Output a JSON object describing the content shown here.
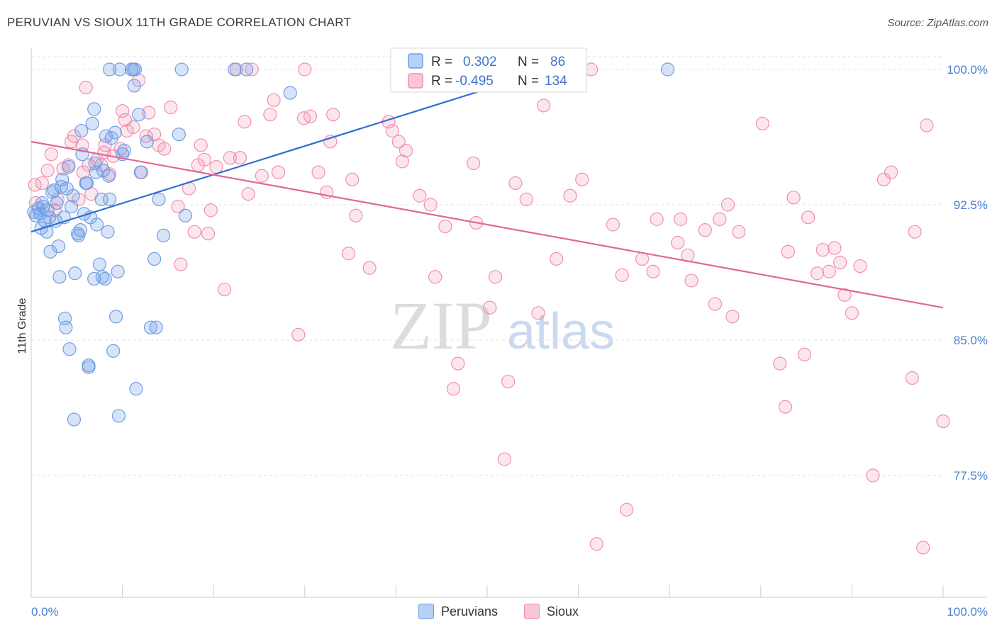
{
  "title": "PERUVIAN VS SIOUX 11TH GRADE CORRELATION CHART",
  "source": "Source: ZipAtlas.com",
  "watermark": {
    "zip": "ZIP",
    "atlas": "atlas"
  },
  "legend_top": {
    "items": [
      {
        "r_label": "R =",
        "r_value": "0.302",
        "n_label": "N =",
        "n_value": "86",
        "color": "#6f9ee6"
      },
      {
        "r_label": "R =",
        "r_value": "-0.495",
        "n_label": "N =",
        "n_value": "134",
        "color": "#f08fb0"
      }
    ]
  },
  "legend_bottom": {
    "items": [
      {
        "label": "Peruvians",
        "color": "#6f9ee6"
      },
      {
        "label": "Sioux",
        "color": "#f08fb0"
      }
    ]
  },
  "chart_data": {
    "type": "scatter",
    "title": "PERUVIAN VS SIOUX 11TH GRADE CORRELATION CHART",
    "xlabel": "",
    "ylabel": "11th Grade",
    "xlim": [
      0,
      100
    ],
    "ylim": [
      72,
      100.6
    ],
    "x_tick_labels": [
      "0.0%",
      "100.0%"
    ],
    "y_ticks": [
      77.5,
      85.0,
      92.5,
      100.0
    ],
    "y_tick_labels": [
      "77.5%",
      "85.0%",
      "92.5%",
      "100.0%"
    ],
    "grid": "horizontal-dashed",
    "legend": "top-center",
    "series": [
      {
        "name": "Peruvians",
        "color": "#6f9ee6",
        "trend": {
          "x": [
            0,
            56.8
          ],
          "y": [
            91.0,
            100.0
          ]
        },
        "points": [
          [
            0.3,
            92.1
          ],
          [
            0.5,
            91.9
          ],
          [
            0.8,
            92.3
          ],
          [
            1.0,
            92.0
          ],
          [
            1.1,
            91.2
          ],
          [
            1.3,
            92.4
          ],
          [
            1.5,
            91.6
          ],
          [
            1.7,
            91.0
          ],
          [
            1.8,
            92.2
          ],
          [
            2.1,
            89.9
          ],
          [
            2.3,
            93.2
          ],
          [
            2.5,
            93.3
          ],
          [
            2.7,
            91.6
          ],
          [
            2.8,
            92.6
          ],
          [
            3.0,
            90.2
          ],
          [
            3.1,
            88.5
          ],
          [
            3.4,
            93.9
          ],
          [
            3.6,
            91.8
          ],
          [
            3.7,
            86.2
          ],
          [
            3.8,
            85.7
          ],
          [
            3.9,
            93.4
          ],
          [
            4.1,
            94.6
          ],
          [
            4.2,
            84.5
          ],
          [
            4.6,
            93.0
          ],
          [
            4.7,
            80.6
          ],
          [
            4.8,
            88.7
          ],
          [
            5.1,
            90.9
          ],
          [
            5.4,
            91.1
          ],
          [
            5.5,
            96.6
          ],
          [
            5.6,
            95.3
          ],
          [
            5.8,
            92.0
          ],
          [
            6.0,
            93.7
          ],
          [
            6.1,
            93.7
          ],
          [
            6.3,
            83.6
          ],
          [
            6.3,
            83.5
          ],
          [
            6.5,
            91.8
          ],
          [
            6.7,
            97.0
          ],
          [
            6.9,
            88.4
          ],
          [
            6.9,
            97.8
          ],
          [
            7.1,
            94.3
          ],
          [
            7.2,
            91.4
          ],
          [
            7.5,
            89.2
          ],
          [
            7.7,
            92.8
          ],
          [
            7.8,
            88.5
          ],
          [
            7.9,
            94.4
          ],
          [
            8.1,
            88.4
          ],
          [
            8.2,
            96.3
          ],
          [
            8.4,
            91.0
          ],
          [
            8.6,
            92.8
          ],
          [
            8.8,
            96.2
          ],
          [
            8.5,
            94.1
          ],
          [
            8.6,
            100.0
          ],
          [
            9.0,
            84.4
          ],
          [
            9.3,
            86.3
          ],
          [
            9.5,
            88.8
          ],
          [
            9.6,
            80.8
          ],
          [
            9.7,
            100.0
          ],
          [
            10.0,
            95.3
          ],
          [
            10.2,
            95.5
          ],
          [
            11.0,
            100.0
          ],
          [
            11.2,
            100.0
          ],
          [
            11.3,
            99.1
          ],
          [
            11.4,
            100.0
          ],
          [
            11.5,
            82.3
          ],
          [
            11.8,
            97.5
          ],
          [
            12.0,
            94.3
          ],
          [
            13.1,
            85.7
          ],
          [
            13.5,
            89.5
          ],
          [
            13.7,
            85.7
          ],
          [
            14.0,
            92.8
          ],
          [
            14.5,
            90.8
          ],
          [
            16.2,
            96.4
          ],
          [
            16.9,
            91.9
          ],
          [
            16.5,
            100.0
          ],
          [
            22.3,
            100.0
          ],
          [
            23.6,
            100.0
          ],
          [
            28.4,
            98.7
          ],
          [
            69.8,
            100.0
          ],
          [
            2.0,
            91.8
          ],
          [
            1.2,
            92.6
          ],
          [
            3.3,
            93.5
          ],
          [
            5.2,
            90.8
          ],
          [
            7.0,
            94.8
          ],
          [
            9.2,
            96.5
          ],
          [
            12.7,
            96.0
          ],
          [
            4.4,
            92.4
          ]
        ]
      },
      {
        "name": "Sioux",
        "color": "#f08fb0",
        "trend": {
          "x": [
            0,
            100
          ],
          "y": [
            96.0,
            86.8
          ]
        },
        "points": [
          [
            0.4,
            93.6
          ],
          [
            0.5,
            92.6
          ],
          [
            1.2,
            93.7
          ],
          [
            1.8,
            94.4
          ],
          [
            2.2,
            95.3
          ],
          [
            2.6,
            92.2
          ],
          [
            2.9,
            92.8
          ],
          [
            3.5,
            94.5
          ],
          [
            4.1,
            94.7
          ],
          [
            4.4,
            96.0
          ],
          [
            4.7,
            96.3
          ],
          [
            5.2,
            92.8
          ],
          [
            5.6,
            95.8
          ],
          [
            5.7,
            94.3
          ],
          [
            6.3,
            94.7
          ],
          [
            6.6,
            93.1
          ],
          [
            7.2,
            95.0
          ],
          [
            7.7,
            94.7
          ],
          [
            8.1,
            95.8
          ],
          [
            8.6,
            94.2
          ],
          [
            9.0,
            95.2
          ],
          [
            9.8,
            95.6
          ],
          [
            10.0,
            97.7
          ],
          [
            10.3,
            97.2
          ],
          [
            10.5,
            96.6
          ],
          [
            11.2,
            96.8
          ],
          [
            11.8,
            99.4
          ],
          [
            12.1,
            94.3
          ],
          [
            12.6,
            96.3
          ],
          [
            12.9,
            97.6
          ],
          [
            13.5,
            96.4
          ],
          [
            14.0,
            95.8
          ],
          [
            14.6,
            95.6
          ],
          [
            15.3,
            97.9
          ],
          [
            16.1,
            92.4
          ],
          [
            16.4,
            89.2
          ],
          [
            17.3,
            93.4
          ],
          [
            17.9,
            91.0
          ],
          [
            18.3,
            94.7
          ],
          [
            18.6,
            95.8
          ],
          [
            19.0,
            95.0
          ],
          [
            19.4,
            90.9
          ],
          [
            19.7,
            92.2
          ],
          [
            20.3,
            94.6
          ],
          [
            21.2,
            87.8
          ],
          [
            21.8,
            95.1
          ],
          [
            22.5,
            100.0
          ],
          [
            22.9,
            95.1
          ],
          [
            23.4,
            97.1
          ],
          [
            23.8,
            93.1
          ],
          [
            24.2,
            100.0
          ],
          [
            25.3,
            94.1
          ],
          [
            26.2,
            97.5
          ],
          [
            26.6,
            98.3
          ],
          [
            27.1,
            94.3
          ],
          [
            29.3,
            85.3
          ],
          [
            29.9,
            97.3
          ],
          [
            30.0,
            100.0
          ],
          [
            30.6,
            97.4
          ],
          [
            31.5,
            94.3
          ],
          [
            32.4,
            93.2
          ],
          [
            32.8,
            96.0
          ],
          [
            33.1,
            97.5
          ],
          [
            34.8,
            89.8
          ],
          [
            35.2,
            93.9
          ],
          [
            35.6,
            91.9
          ],
          [
            37.1,
            89.0
          ],
          [
            39.2,
            97.1
          ],
          [
            39.6,
            96.6
          ],
          [
            40.3,
            96.0
          ],
          [
            40.7,
            94.9
          ],
          [
            41.1,
            95.5
          ],
          [
            42.6,
            93.0
          ],
          [
            43.8,
            92.5
          ],
          [
            44.3,
            88.5
          ],
          [
            45.4,
            91.3
          ],
          [
            46.3,
            82.3
          ],
          [
            46.8,
            83.7
          ],
          [
            48.5,
            94.8
          ],
          [
            48.8,
            91.5
          ],
          [
            50.3,
            86.8
          ],
          [
            50.9,
            88.5
          ],
          [
            51.9,
            78.4
          ],
          [
            52.3,
            82.7
          ],
          [
            53.1,
            93.7
          ],
          [
            54.3,
            92.8
          ],
          [
            55.6,
            86.5
          ],
          [
            56.2,
            98.0
          ],
          [
            57.6,
            89.5
          ],
          [
            59.1,
            93.0
          ],
          [
            60.4,
            93.9
          ],
          [
            61.4,
            100.0
          ],
          [
            62.0,
            73.7
          ],
          [
            63.8,
            91.4
          ],
          [
            64.8,
            88.6
          ],
          [
            65.3,
            75.6
          ],
          [
            67.0,
            89.5
          ],
          [
            68.2,
            88.8
          ],
          [
            68.6,
            91.7
          ],
          [
            70.9,
            90.4
          ],
          [
            71.2,
            91.7
          ],
          [
            72.0,
            89.7
          ],
          [
            72.4,
            88.3
          ],
          [
            73.9,
            91.1
          ],
          [
            75.0,
            87.0
          ],
          [
            75.5,
            91.7
          ],
          [
            76.4,
            92.5
          ],
          [
            76.9,
            86.3
          ],
          [
            77.6,
            91.0
          ],
          [
            80.2,
            97.0
          ],
          [
            82.1,
            83.7
          ],
          [
            82.7,
            81.3
          ],
          [
            83.0,
            89.9
          ],
          [
            83.6,
            92.9
          ],
          [
            84.8,
            84.2
          ],
          [
            85.2,
            91.8
          ],
          [
            86.2,
            88.7
          ],
          [
            86.8,
            90.0
          ],
          [
            87.5,
            88.8
          ],
          [
            88.1,
            90.1
          ],
          [
            88.7,
            89.3
          ],
          [
            89.2,
            87.5
          ],
          [
            90.0,
            86.5
          ],
          [
            90.9,
            89.1
          ],
          [
            92.3,
            77.5
          ],
          [
            93.5,
            93.9
          ],
          [
            94.3,
            94.3
          ],
          [
            96.6,
            82.9
          ],
          [
            96.9,
            91.0
          ],
          [
            97.8,
            73.5
          ],
          [
            98.2,
            96.9
          ],
          [
            100.0,
            80.5
          ],
          [
            8.0,
            95.4
          ],
          [
            6.0,
            99.0
          ]
        ]
      }
    ]
  }
}
